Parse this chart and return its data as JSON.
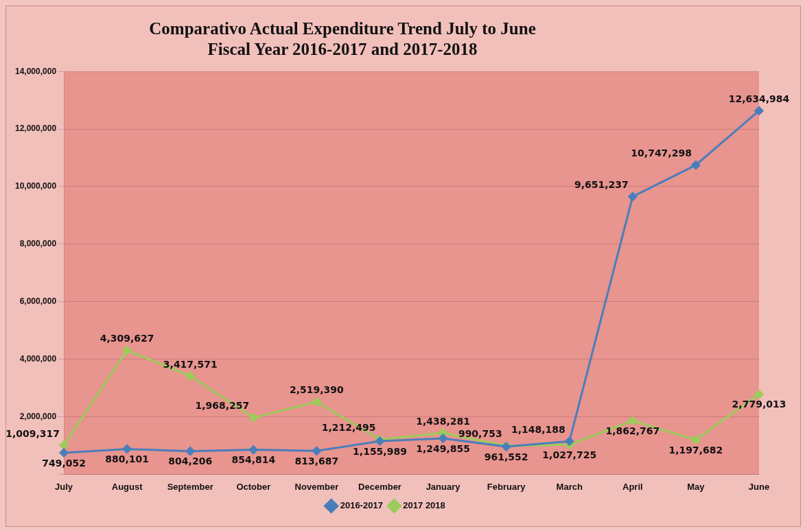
{
  "chart_data": {
    "type": "line",
    "title": "Comparativo Actual Expenditure Trend July to June",
    "subtitle": "Fiscal Year 2016-2017 and 2017-2018",
    "categories": [
      "July",
      "August",
      "September",
      "October",
      "November",
      "December",
      "January",
      "February",
      "March",
      "April",
      "May",
      "June"
    ],
    "series": [
      {
        "name": "2016-2017",
        "color": "#4a7ebb",
        "values": [
          749052,
          880101,
          804206,
          854814,
          813687,
          1155989,
          1249855,
          961552,
          1148188,
          9651237,
          10747298,
          12634984
        ],
        "value_labels": [
          "749,052",
          "880,101",
          "804,206",
          "854,814",
          "813,687",
          "1,155,989",
          "1,249,855",
          "961,552",
          "1,148,188",
          "9,651,237",
          "10,747,298",
          "12,634,984"
        ]
      },
      {
        "name": "2017 2018",
        "color": "#9bcc5a",
        "values": [
          1009317,
          4309627,
          3417571,
          1968257,
          2519390,
          1212495,
          1438281,
          990753,
          1027725,
          1862767,
          1197682,
          2779013
        ],
        "value_labels": [
          "1,009,317",
          "4,309,627",
          "3,417,571",
          "1,968,257",
          "2,519,390",
          "1,212,495",
          "1,438,281",
          "990,753",
          "1,027,725",
          "1,862,767",
          "1,197,682",
          "2,779,013"
        ]
      }
    ],
    "ylim": [
      0,
      14000000
    ],
    "yticks": [
      {
        "value": 0,
        "label": null
      },
      {
        "value": 2000000,
        "label": "2,000,000"
      },
      {
        "value": 4000000,
        "label": "4,000,000"
      },
      {
        "value": 6000000,
        "label": "6,000,000"
      },
      {
        "value": 8000000,
        "label": "8,000,000"
      },
      {
        "value": 10000000,
        "label": "10,000,000"
      },
      {
        "value": 12000000,
        "label": "12,000,000"
      },
      {
        "value": 14000000,
        "label": "14,000,000"
      }
    ],
    "grid": "y",
    "legend": "bottom",
    "marker": "diamond",
    "line_style": "solid"
  }
}
